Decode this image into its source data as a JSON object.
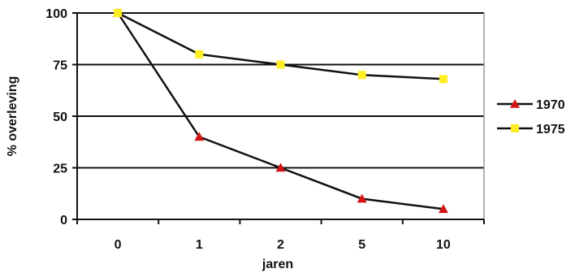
{
  "chart_data": {
    "type": "line",
    "categories": [
      "0",
      "1",
      "2",
      "5",
      "10"
    ],
    "series": [
      {
        "name": "1970",
        "values": [
          100,
          40,
          25,
          10,
          5
        ],
        "color": "#d41414",
        "line_color": "#111111",
        "marker": "triangle"
      },
      {
        "name": "1975",
        "values": [
          100,
          80,
          75,
          70,
          68
        ],
        "color": "#ffee22",
        "line_color": "#111111",
        "marker": "square"
      }
    ],
    "title": "",
    "xlabel": "jaren",
    "ylabel": "% overleving",
    "ylim": [
      0,
      100
    ],
    "yticks": [
      0,
      25,
      50,
      75,
      100
    ],
    "grid": "horizontal",
    "legend_position": "right"
  }
}
